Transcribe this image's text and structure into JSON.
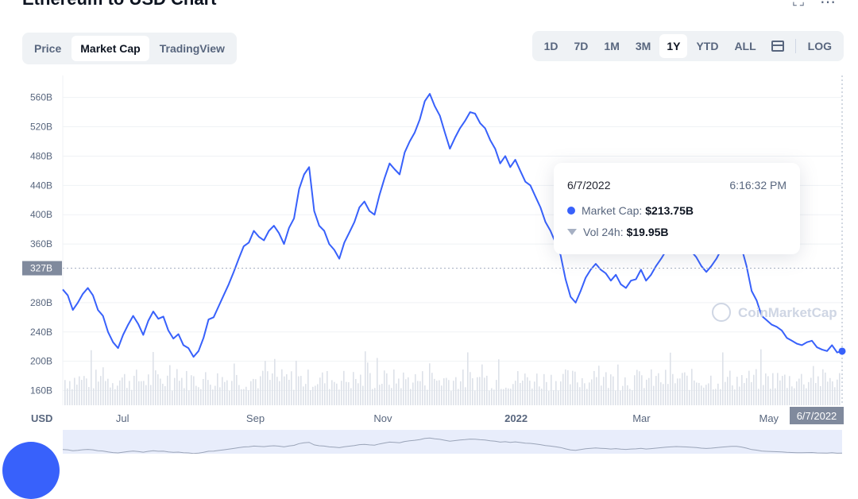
{
  "header": {
    "title": "Ethereum to USD Chart",
    "expand_icon": "expand-icon",
    "more_icon": "more-icon"
  },
  "tabs_left": [
    {
      "label": "Price",
      "active": false
    },
    {
      "label": "Market Cap",
      "active": true
    },
    {
      "label": "TradingView",
      "active": false
    }
  ],
  "ranges": [
    {
      "label": "1D",
      "active": false
    },
    {
      "label": "7D",
      "active": false
    },
    {
      "label": "1M",
      "active": false
    },
    {
      "label": "3M",
      "active": false
    },
    {
      "label": "1Y",
      "active": true
    },
    {
      "label": "YTD",
      "active": false
    },
    {
      "label": "ALL",
      "active": false
    }
  ],
  "log_label": "LOG",
  "calendar_icon": "calendar-icon",
  "tooltip": {
    "date": "6/7/2022",
    "time": "6:16:32 PM",
    "market_cap_label": "Market Cap:",
    "market_cap_value": "$213.75B",
    "vol_label": "Vol 24h:",
    "vol_value": "$19.95B"
  },
  "watermark": "CoinMarketCap",
  "colors": {
    "line": "#3861fb",
    "text_muted": "#58667e"
  },
  "chart_data": {
    "type": "line",
    "currency_label": "USD",
    "y_ticks": [
      "560B",
      "520B",
      "480B",
      "440B",
      "400B",
      "360B",
      "280B",
      "240B",
      "200B",
      "160B"
    ],
    "y_tick_values": [
      560,
      520,
      480,
      440,
      400,
      360,
      280,
      240,
      200,
      160
    ],
    "ylim": [
      140,
      590
    ],
    "x_ticks": [
      "Jul",
      "Sep",
      "Nov",
      "2022",
      "Mar",
      "May"
    ],
    "x_tick_positions": [
      0.0767,
      0.2472,
      0.4107,
      0.5817,
      0.7425,
      0.906
    ],
    "crosshair_y_label": "327B",
    "crosshair_y_value": 327,
    "crosshair_x_label": "6/7/2022",
    "series": [
      {
        "name": "Market Cap",
        "values": [
          298,
          290,
          270,
          280,
          292,
          300,
          290,
          270,
          262,
          240,
          226,
          218,
          236,
          250,
          262,
          251,
          236,
          255,
          268,
          258,
          261,
          242,
          231,
          237,
          222,
          218,
          206,
          214,
          232,
          257,
          260,
          275,
          290,
          305,
          322,
          340,
          357,
          362,
          378,
          370,
          365,
          378,
          385,
          375,
          360,
          382,
          395,
          435,
          455,
          465,
          405,
          385,
          378,
          360,
          352,
          340,
          362,
          376,
          390,
          410,
          418,
          405,
          400,
          427,
          450,
          470,
          462,
          455,
          485,
          500,
          512,
          530,
          555,
          565,
          548,
          535,
          512,
          490,
          505,
          518,
          528,
          540,
          538,
          525,
          518,
          502,
          490,
          470,
          480,
          465,
          475,
          460,
          445,
          440,
          425,
          410,
          390,
          378,
          362,
          345,
          312,
          288,
          280,
          296,
          314,
          325,
          333,
          325,
          320,
          310,
          318,
          305,
          300,
          310,
          312,
          325,
          310,
          318,
          330,
          340,
          351,
          360,
          367,
          362,
          357,
          350,
          342,
          330,
          322,
          330,
          340,
          353,
          363,
          370,
          370,
          355,
          330,
          296,
          283,
          262,
          256,
          250,
          247,
          242,
          232,
          228,
          224,
          222,
          226,
          228,
          219,
          216,
          214,
          222,
          212,
          214
        ]
      }
    ],
    "x_start": "2021-06-07",
    "x_end": "2022-06-07",
    "current_point": 213.75
  }
}
